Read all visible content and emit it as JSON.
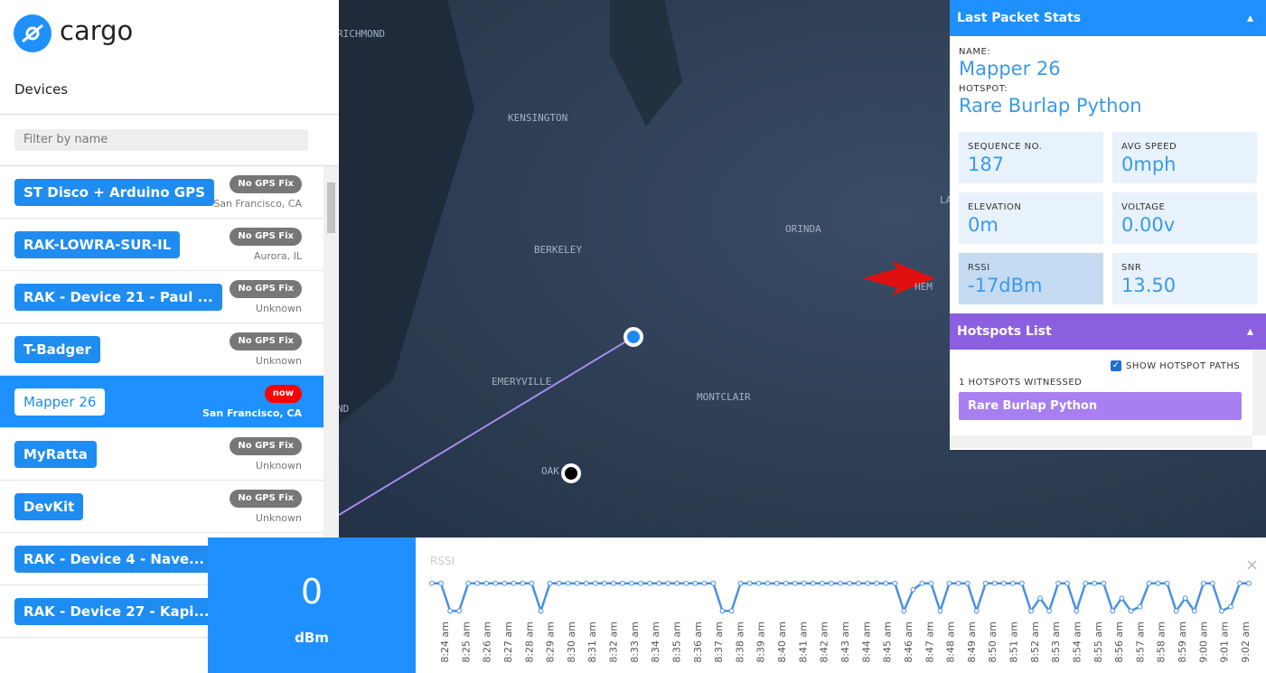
{
  "app": {
    "logo": "cargo",
    "section_title": "Devices",
    "filter_placeholder": "Filter by name",
    "devices": [
      {
        "name": "ST Disco + Arduino GPS",
        "badge": "No GPS Fix",
        "location": "San Francisco, CA"
      },
      {
        "name": "RAK-LOWRA-SUR-IL",
        "badge": "No GPS Fix",
        "location": "Aurora, IL"
      },
      {
        "name": "RAK - Device 21 - Paul ...",
        "badge": "No GPS Fix",
        "location": "Unknown"
      },
      {
        "name": "T-Badger",
        "badge": "No GPS Fix",
        "location": "Unknown"
      },
      {
        "name": "Mapper 26",
        "badge": "now",
        "location": "San Francisco, CA",
        "selected": true
      },
      {
        "name": "MyRatta",
        "badge": "No GPS Fix",
        "location": "Unknown"
      },
      {
        "name": "DevKit",
        "badge": "No GPS Fix",
        "location": "Unknown"
      },
      {
        "name": "RAK - Device 4 - Nave..."
      },
      {
        "name": "RAK - Device 27 - Kapi..."
      }
    ]
  },
  "map": {
    "labels": [
      "RICHMOND",
      "KENSINGTON",
      "BERKELEY",
      "ORINDA",
      "EMERYVILLE",
      "MONTCLAIR",
      "OAK",
      "ND",
      "LA",
      "HEM"
    ]
  },
  "stats_panel": {
    "title": "Last Packet Stats",
    "name_label": "NAME:",
    "name": "Mapper 26",
    "hotspot_label": "HOTSPOT:",
    "hotspot": "Rare Burlap Python",
    "cards": [
      {
        "label": "SEQUENCE NO.",
        "value": "187"
      },
      {
        "label": "AVG SPEED",
        "value": "0mph"
      },
      {
        "label": "ELEVATION",
        "value": "0m"
      },
      {
        "label": "VOLTAGE",
        "value": "0.00v"
      },
      {
        "label": "RSSI",
        "value": "-17dBm",
        "highlight": true
      },
      {
        "label": "SNR",
        "value": "13.50"
      }
    ]
  },
  "hotspots_panel": {
    "title": "Hotspots List",
    "show_paths": "SHOW HOTSPOT PATHS",
    "witnessed": "1 HOTSPOTS WITNESSED",
    "hotspots": [
      "Rare Burlap Python"
    ]
  },
  "signal": {
    "value": 0,
    "unit": "dBm"
  },
  "rssi_chart": {
    "type": "line",
    "title": "RSSI",
    "close": "×",
    "color": "#4a90e2",
    "ylim": [
      -32,
      -15
    ],
    "xticks": [
      "8:24 am",
      "8:25 am",
      "8:26 am",
      "8:27 am",
      "8:28 am",
      "8:29 am",
      "8:30 am",
      "8:31 am",
      "8:32 am",
      "8:33 am",
      "8:34 am",
      "8:35 am",
      "8:36 am",
      "8:37 am",
      "8:38 am",
      "8:39 am",
      "8:40 am",
      "8:41 am",
      "8:42 am",
      "8:43 am",
      "8:44 am",
      "8:45 am",
      "8:46 am",
      "8:47 am",
      "8:48 am",
      "8:49 am",
      "8:50 am",
      "8:51 am",
      "8:52 am",
      "8:53 am",
      "8:54 am",
      "8:55 am",
      "8:56 am",
      "8:57 am",
      "8:58 am",
      "8:59 am",
      "9:00 am",
      "9:01 am",
      "9:02 am"
    ],
    "values": [
      -17,
      -17,
      -30,
      -30,
      -17,
      -17,
      -17,
      -17,
      -17,
      -17,
      -17,
      -17,
      -30,
      -17,
      -17,
      -17,
      -17,
      -17,
      -17,
      -17,
      -17,
      -17,
      -17,
      -17,
      -17,
      -17,
      -17,
      -17,
      -17,
      -17,
      -17,
      -17,
      -30,
      -30,
      -17,
      -17,
      -17,
      -17,
      -17,
      -17,
      -17,
      -17,
      -17,
      -17,
      -17,
      -17,
      -17,
      -17,
      -17,
      -17,
      -17,
      -17,
      -30,
      -20,
      -17,
      -17,
      -30,
      -17,
      -17,
      -17,
      -30,
      -17,
      -17,
      -17,
      -17,
      -17,
      -30,
      -24,
      -30,
      -17,
      -17,
      -30,
      -17,
      -17,
      -17,
      -30,
      -24,
      -30,
      -28,
      -17,
      -17,
      -17,
      -30,
      -24,
      -30,
      -17,
      -17,
      -30,
      -28,
      -17,
      -17
    ]
  }
}
